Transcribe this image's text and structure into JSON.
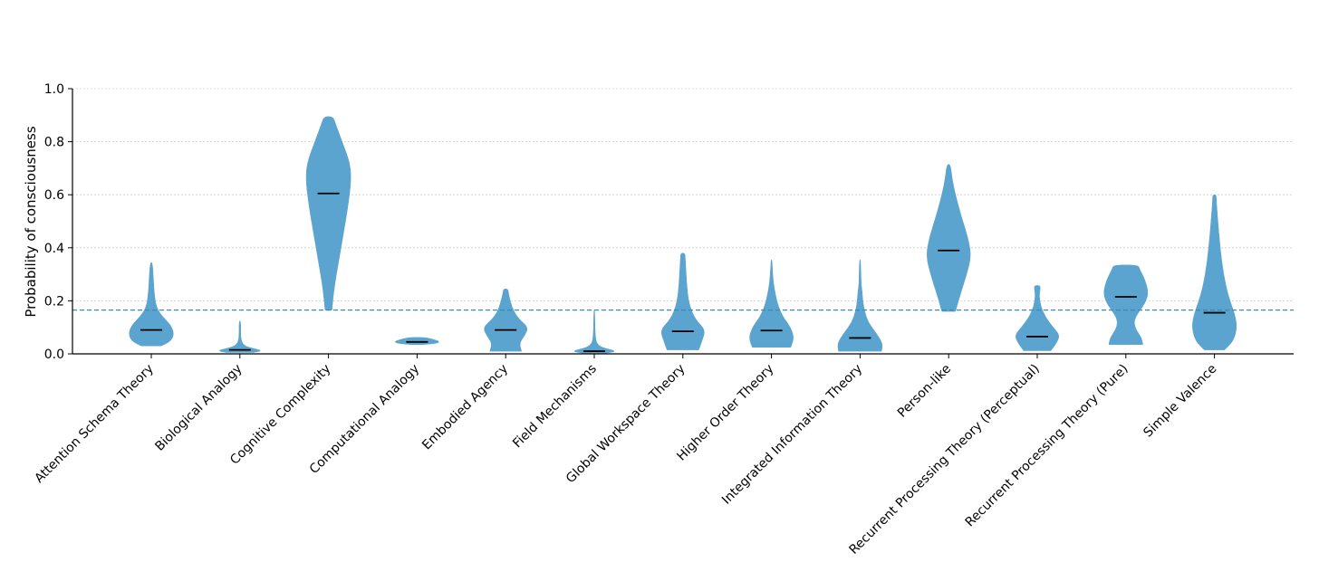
{
  "chart_data": {
    "type": "violin",
    "ylabel": "Probability of consciousness",
    "ylim": [
      0,
      1
    ],
    "yticks": [
      "0.0",
      "0.2",
      "0.4",
      "0.6",
      "0.8",
      "1.0"
    ],
    "grid": "horizontal dotted",
    "reference_line": 0.165,
    "colors": {
      "violin": "#5ba4cf",
      "median": "#000000",
      "reference": "#3a8ab5",
      "grid": "#d0d0d0"
    },
    "categories": [
      "Attention Schema Theory",
      "Biological Analogy",
      "Cognitive Complexity",
      "Computational Analogy",
      "Embodied Agency",
      "Field Mechanisms",
      "Global Workspace Theory",
      "Higher Order Theory",
      "Integrated Information Theory",
      "Person-like",
      "Recurrent Processing Theory (Perceptual)",
      "Recurrent Processing Theory (Pure)",
      "Simple Valence"
    ],
    "violins": [
      {
        "median": 0.09,
        "min": 0.03,
        "max": 0.345,
        "profile": [
          [
            0.03,
            0.45
          ],
          [
            0.05,
            0.9
          ],
          [
            0.08,
            1.0
          ],
          [
            0.11,
            0.85
          ],
          [
            0.14,
            0.5
          ],
          [
            0.17,
            0.25
          ],
          [
            0.21,
            0.15
          ],
          [
            0.27,
            0.1
          ],
          [
            0.32,
            0.07
          ],
          [
            0.345,
            0.03
          ]
        ]
      },
      {
        "median": 0.015,
        "min": 0.005,
        "max": 0.125,
        "profile": [
          [
            0.005,
            0.6
          ],
          [
            0.012,
            1.0
          ],
          [
            0.02,
            0.6
          ],
          [
            0.03,
            0.2
          ],
          [
            0.05,
            0.05
          ],
          [
            0.09,
            0.03
          ],
          [
            0.11,
            0.04
          ],
          [
            0.125,
            0.01
          ]
        ]
      },
      {
        "median": 0.605,
        "min": 0.165,
        "max": 0.895,
        "profile": [
          [
            0.165,
            0.15
          ],
          [
            0.25,
            0.25
          ],
          [
            0.35,
            0.45
          ],
          [
            0.45,
            0.65
          ],
          [
            0.55,
            0.85
          ],
          [
            0.65,
            1.0
          ],
          [
            0.72,
            0.95
          ],
          [
            0.8,
            0.6
          ],
          [
            0.87,
            0.3
          ],
          [
            0.895,
            0.2
          ]
        ]
      },
      {
        "median": 0.045,
        "min": 0.035,
        "max": 0.062,
        "profile": [
          [
            0.035,
            0.3
          ],
          [
            0.04,
            0.9
          ],
          [
            0.047,
            1.0
          ],
          [
            0.055,
            0.7
          ],
          [
            0.062,
            0.35
          ]
        ]
      },
      {
        "median": 0.09,
        "min": 0.01,
        "max": 0.245,
        "profile": [
          [
            0.01,
            0.7
          ],
          [
            0.04,
            0.6
          ],
          [
            0.07,
            0.85
          ],
          [
            0.1,
            1.0
          ],
          [
            0.13,
            0.6
          ],
          [
            0.16,
            0.35
          ],
          [
            0.2,
            0.2
          ],
          [
            0.23,
            0.12
          ],
          [
            0.245,
            0.1
          ]
        ]
      },
      {
        "median": 0.01,
        "min": 0.003,
        "max": 0.165,
        "profile": [
          [
            0.003,
            0.55
          ],
          [
            0.01,
            1.0
          ],
          [
            0.02,
            0.5
          ],
          [
            0.03,
            0.2
          ],
          [
            0.05,
            0.06
          ],
          [
            0.1,
            0.03
          ],
          [
            0.165,
            0.02
          ]
        ]
      },
      {
        "median": 0.085,
        "min": 0.015,
        "max": 0.38,
        "profile": [
          [
            0.015,
            0.7
          ],
          [
            0.05,
            0.85
          ],
          [
            0.09,
            1.0
          ],
          [
            0.13,
            0.55
          ],
          [
            0.18,
            0.3
          ],
          [
            0.23,
            0.2
          ],
          [
            0.29,
            0.15
          ],
          [
            0.34,
            0.12
          ],
          [
            0.37,
            0.1
          ],
          [
            0.38,
            0.08
          ]
        ]
      },
      {
        "median": 0.088,
        "min": 0.025,
        "max": 0.355,
        "profile": [
          [
            0.025,
            0.85
          ],
          [
            0.06,
            1.0
          ],
          [
            0.1,
            0.85
          ],
          [
            0.14,
            0.5
          ],
          [
            0.18,
            0.3
          ],
          [
            0.22,
            0.18
          ],
          [
            0.27,
            0.08
          ],
          [
            0.32,
            0.04
          ],
          [
            0.355,
            0.02
          ]
        ]
      },
      {
        "median": 0.06,
        "min": 0.01,
        "max": 0.355,
        "profile": [
          [
            0.01,
            0.95
          ],
          [
            0.04,
            1.0
          ],
          [
            0.08,
            0.7
          ],
          [
            0.12,
            0.35
          ],
          [
            0.16,
            0.2
          ],
          [
            0.2,
            0.12
          ],
          [
            0.23,
            0.1
          ],
          [
            0.26,
            0.05
          ],
          [
            0.3,
            0.04
          ],
          [
            0.355,
            0.02
          ]
        ]
      },
      {
        "median": 0.39,
        "min": 0.16,
        "max": 0.715,
        "profile": [
          [
            0.16,
            0.3
          ],
          [
            0.22,
            0.5
          ],
          [
            0.3,
            0.8
          ],
          [
            0.37,
            1.0
          ],
          [
            0.44,
            0.85
          ],
          [
            0.52,
            0.55
          ],
          [
            0.6,
            0.3
          ],
          [
            0.66,
            0.15
          ],
          [
            0.715,
            0.08
          ]
        ]
      },
      {
        "median": 0.065,
        "min": 0.012,
        "max": 0.258,
        "profile": [
          [
            0.012,
            0.6
          ],
          [
            0.04,
            0.85
          ],
          [
            0.07,
            1.0
          ],
          [
            0.1,
            0.7
          ],
          [
            0.14,
            0.35
          ],
          [
            0.18,
            0.15
          ],
          [
            0.22,
            0.08
          ],
          [
            0.25,
            0.14
          ],
          [
            0.258,
            0.1
          ]
        ]
      },
      {
        "median": 0.215,
        "min": 0.035,
        "max": 0.335,
        "profile": [
          [
            0.035,
            0.75
          ],
          [
            0.06,
            0.7
          ],
          [
            0.09,
            0.45
          ],
          [
            0.12,
            0.35
          ],
          [
            0.15,
            0.5
          ],
          [
            0.19,
            0.85
          ],
          [
            0.23,
            1.0
          ],
          [
            0.28,
            0.85
          ],
          [
            0.32,
            0.6
          ],
          [
            0.335,
            0.55
          ]
        ]
      },
      {
        "median": 0.155,
        "min": 0.015,
        "max": 0.6,
        "profile": [
          [
            0.015,
            0.45
          ],
          [
            0.05,
            0.85
          ],
          [
            0.1,
            1.0
          ],
          [
            0.15,
            0.9
          ],
          [
            0.22,
            0.6
          ],
          [
            0.3,
            0.4
          ],
          [
            0.4,
            0.25
          ],
          [
            0.5,
            0.15
          ],
          [
            0.58,
            0.08
          ],
          [
            0.6,
            0.08
          ]
        ]
      }
    ]
  }
}
